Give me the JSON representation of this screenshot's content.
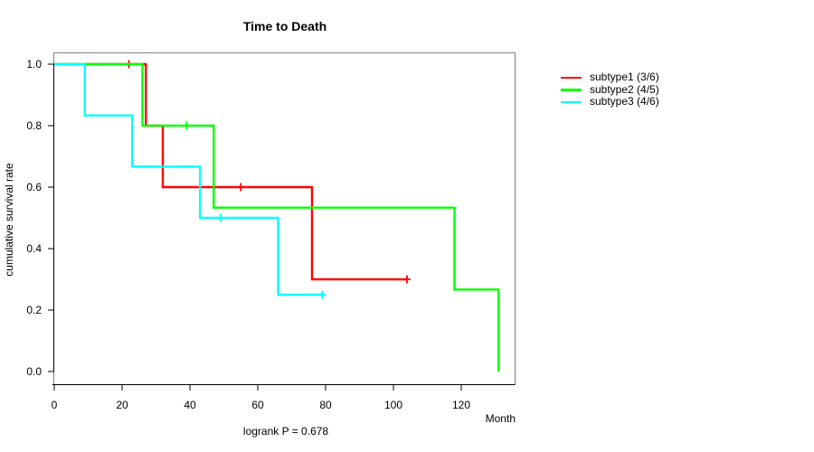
{
  "chart_data": {
    "type": "step",
    "subtype_kind": "kaplan-meier-survival",
    "title": "Time to Death",
    "xlabel": "Month",
    "ylabel": "cumulative survival rate",
    "footnote": "logrank P = 0.678",
    "xlim": [
      0,
      136
    ],
    "ylim": [
      0.0,
      1.0
    ],
    "xticks": [
      0,
      20,
      40,
      60,
      80,
      100,
      120
    ],
    "yticks": [
      "0.0",
      "0.2",
      "0.4",
      "0.6",
      "0.8",
      "1.0"
    ],
    "grid": false,
    "legend_position": "right-outside",
    "axis_color": "#000000",
    "box_color": "#808080",
    "background_color": "#ffffff",
    "series": [
      {
        "name": "subtype1 (3/6)",
        "color": "#ff0000",
        "events": 3,
        "n": 6,
        "steps": [
          [
            0,
            1.0
          ],
          [
            27,
            0.8
          ],
          [
            32,
            0.6
          ],
          [
            76,
            0.3
          ],
          [
            104,
            0.3
          ]
        ],
        "censors": [
          [
            22,
            1.0
          ],
          [
            55,
            0.6
          ],
          [
            104,
            0.3
          ]
        ]
      },
      {
        "name": "subtype2 (4/5)",
        "color": "#00ff00",
        "events": 4,
        "n": 5,
        "steps": [
          [
            0,
            1.0
          ],
          [
            26,
            0.8
          ],
          [
            47,
            0.5333
          ],
          [
            118,
            0.2667
          ],
          [
            131,
            0.0
          ]
        ],
        "censors": [
          [
            39,
            0.8
          ]
        ]
      },
      {
        "name": "subtype3 (4/6)",
        "color": "#00ffff",
        "events": 4,
        "n": 6,
        "steps": [
          [
            0,
            1.0
          ],
          [
            9,
            0.8333
          ],
          [
            23,
            0.6667
          ],
          [
            43,
            0.5
          ],
          [
            66,
            0.25
          ],
          [
            79,
            0.25
          ]
        ],
        "censors": [
          [
            49,
            0.5
          ],
          [
            79,
            0.25
          ]
        ]
      }
    ]
  }
}
